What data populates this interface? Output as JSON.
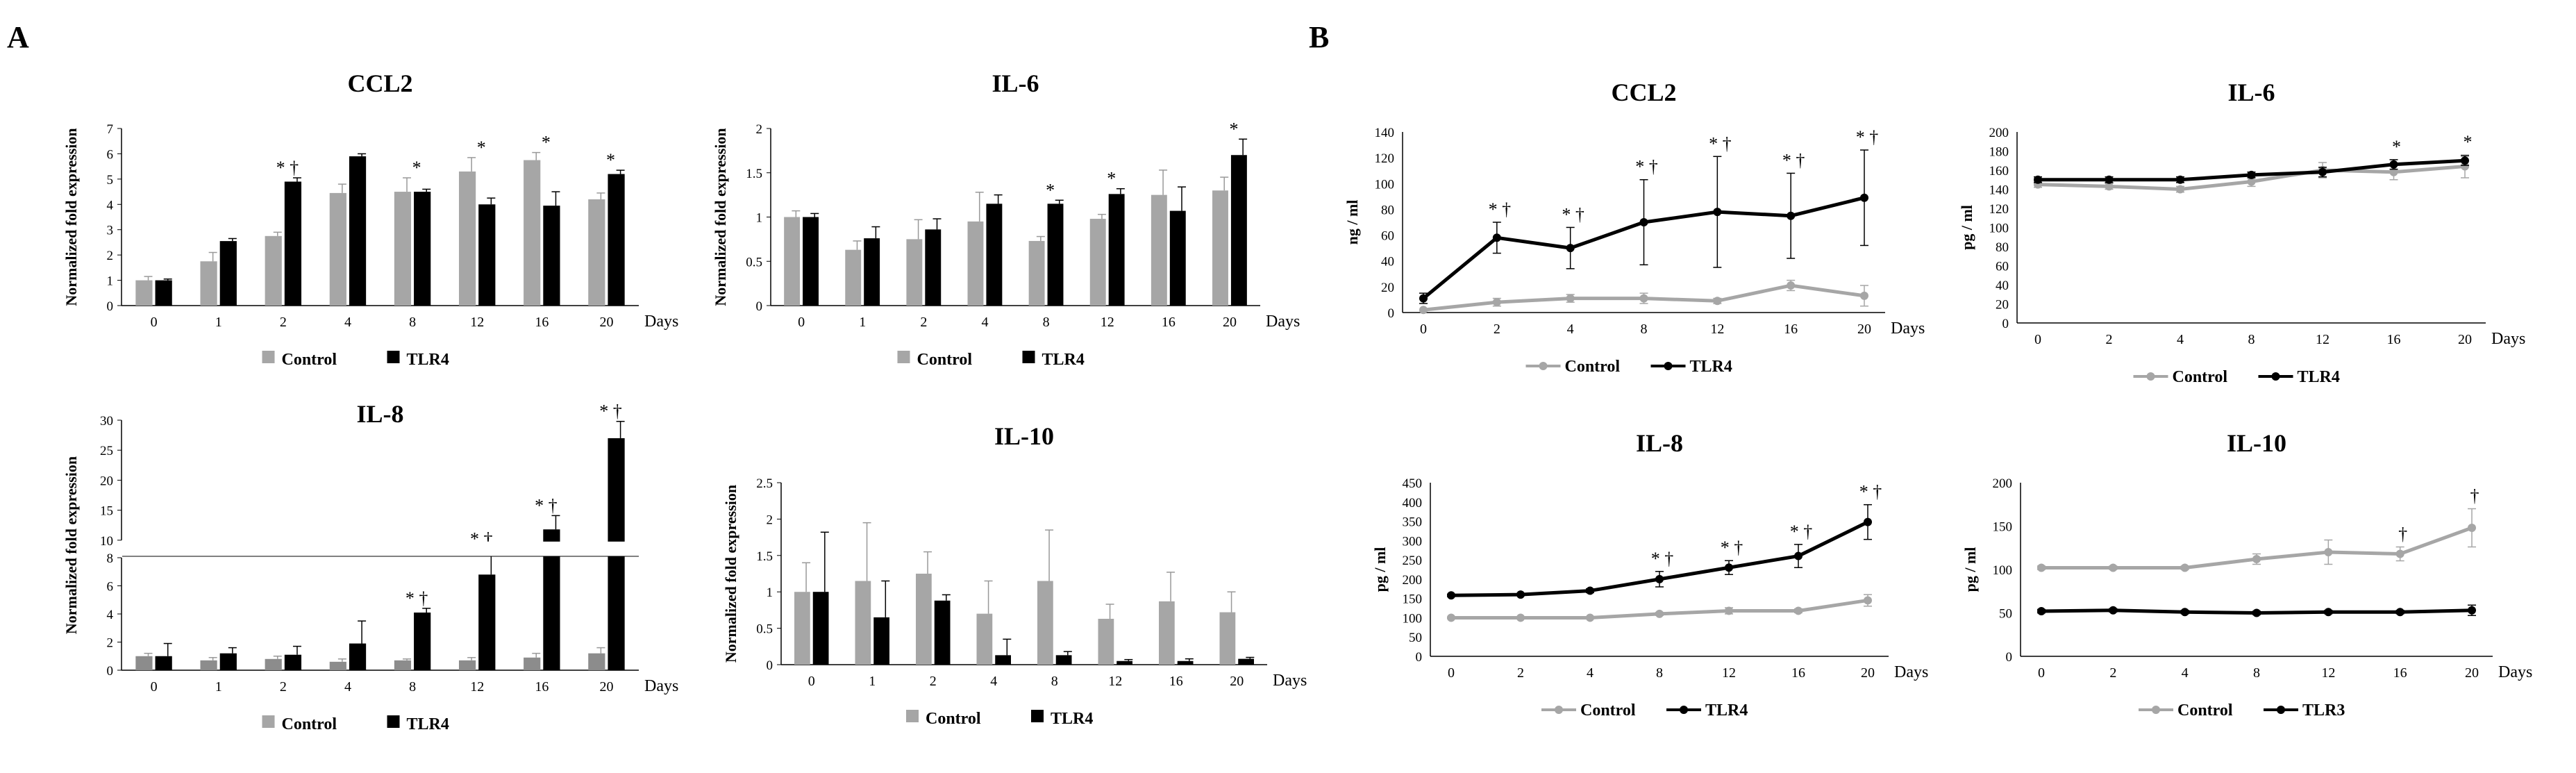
{
  "panels": {
    "a": "A",
    "b": "B"
  },
  "colors": {
    "control_bar": "#a6a6a6",
    "control_bar_dark": "#8c8c8c",
    "control_line": "#a6a6a6",
    "tlr": "#000000"
  },
  "chart_data": [
    {
      "id": "a-ccl2",
      "type": "bar",
      "title": "CCL2",
      "xlabel": "Days",
      "ylabel": "Normalized fold expression",
      "categories": [
        "0",
        "1",
        "2",
        "4",
        "8",
        "12",
        "16",
        "20"
      ],
      "yticks": [
        "0",
        "1",
        "2",
        "3",
        "4",
        "5",
        "6",
        "7"
      ],
      "ylim": [
        0,
        7
      ],
      "series": [
        {
          "name": "Control",
          "values": [
            1.0,
            1.75,
            2.75,
            4.45,
            4.5,
            5.3,
            5.75,
            4.2
          ],
          "err": [
            0.15,
            0.35,
            0.15,
            0.35,
            0.55,
            0.55,
            0.3,
            0.25
          ]
        },
        {
          "name": "TLR4",
          "values": [
            1.0,
            2.55,
            4.9,
            5.9,
            4.5,
            4.0,
            3.95,
            5.2
          ],
          "err": [
            0.05,
            0.1,
            0.15,
            0.1,
            0.1,
            0.25,
            0.55,
            0.15
          ]
        }
      ],
      "annotations": [
        {
          "category": "2",
          "text": "* †"
        },
        {
          "category": "8",
          "text": "*"
        },
        {
          "category": "12",
          "text": "*"
        },
        {
          "category": "16",
          "text": "*"
        },
        {
          "category": "20",
          "text": "*"
        }
      ]
    },
    {
      "id": "a-il6",
      "type": "bar",
      "title": "IL-6",
      "xlabel": "Days",
      "ylabel": "Normalized fold expression",
      "categories": [
        "0",
        "1",
        "2",
        "4",
        "8",
        "12",
        "16",
        "20"
      ],
      "yticks": [
        "0",
        "0.5",
        "1",
        "1.5",
        "2"
      ],
      "ylim": [
        0,
        2
      ],
      "series": [
        {
          "name": "Control",
          "values": [
            1.0,
            0.63,
            0.75,
            0.95,
            0.73,
            0.98,
            1.25,
            1.3
          ],
          "err": [
            0.07,
            0.1,
            0.22,
            0.33,
            0.05,
            0.05,
            0.28,
            0.15
          ]
        },
        {
          "name": "TLR4",
          "values": [
            1.0,
            0.76,
            0.86,
            1.15,
            1.15,
            1.26,
            1.07,
            1.7
          ],
          "err": [
            0.04,
            0.13,
            0.12,
            0.1,
            0.04,
            0.06,
            0.27,
            0.18
          ]
        }
      ],
      "annotations": [
        {
          "category": "8",
          "text": "*"
        },
        {
          "category": "12",
          "text": "*"
        },
        {
          "category": "20",
          "text": "*"
        }
      ]
    },
    {
      "id": "a-il8",
      "type": "bar",
      "title": "IL-8",
      "xlabel": "Days",
      "ylabel": "Normalized fold expression",
      "categories": [
        "0",
        "1",
        "2",
        "4",
        "8",
        "12",
        "16",
        "20"
      ],
      "yticks_lower": [
        "0",
        "2",
        "4",
        "6",
        "8"
      ],
      "yticks_upper": [
        "10",
        "15",
        "20",
        "25",
        "30"
      ],
      "broken_axis": {
        "lower": [
          0,
          8
        ],
        "upper": [
          10,
          30
        ]
      },
      "series": [
        {
          "name": "Control",
          "values": [
            1.0,
            0.7,
            0.8,
            0.6,
            0.7,
            0.7,
            0.9,
            1.2
          ],
          "err": [
            0.2,
            0.2,
            0.2,
            0.2,
            0.1,
            0.2,
            0.3,
            0.4
          ]
        },
        {
          "name": "TLR4",
          "values": [
            1.0,
            1.2,
            1.1,
            1.9,
            4.1,
            6.8,
            11.8,
            27.0
          ],
          "err": [
            0.9,
            0.4,
            0.6,
            1.6,
            0.3,
            1.5,
            2.3,
            2.8
          ]
        }
      ],
      "annotations": [
        {
          "category": "8",
          "text": "* †"
        },
        {
          "category": "12",
          "text": "* †"
        },
        {
          "category": "16",
          "text": "* †"
        },
        {
          "category": "20",
          "text": "* †"
        }
      ]
    },
    {
      "id": "a-il10",
      "type": "bar",
      "title": "IL-10",
      "xlabel": "Days",
      "ylabel": "Normalized fold expression",
      "categories": [
        "0",
        "1",
        "2",
        "4",
        "8",
        "12",
        "16",
        "20"
      ],
      "yticks": [
        "0",
        "0.5",
        "1",
        "1.5",
        "2",
        "2.5"
      ],
      "ylim": [
        0,
        2.5
      ],
      "series": [
        {
          "name": "Control",
          "values": [
            1.0,
            1.15,
            1.25,
            0.7,
            1.15,
            0.63,
            0.87,
            0.72
          ],
          "err": [
            0.4,
            0.8,
            0.3,
            0.45,
            0.7,
            0.2,
            0.4,
            0.28
          ]
        },
        {
          "name": "TLR4",
          "values": [
            1.0,
            0.65,
            0.88,
            0.13,
            0.13,
            0.05,
            0.05,
            0.08
          ],
          "err": [
            0.82,
            0.5,
            0.08,
            0.22,
            0.05,
            0.02,
            0.03,
            0.02
          ]
        }
      ],
      "annotations": []
    },
    {
      "id": "b-ccl2",
      "type": "line",
      "title": "CCL2",
      "xlabel": "Days",
      "ylabel": "ng / ml",
      "categories": [
        "0",
        "2",
        "4",
        "8",
        "12",
        "16",
        "20"
      ],
      "yticks": [
        "0",
        "20",
        "40",
        "60",
        "80",
        "100",
        "120",
        "140"
      ],
      "ylim": [
        0,
        140
      ],
      "series": [
        {
          "name": "Control",
          "values": [
            2,
            8,
            11,
            11,
            9,
            21,
            13
          ],
          "err": [
            0,
            3,
            3,
            4,
            2,
            4,
            8
          ]
        },
        {
          "name": "TLR4",
          "values": [
            11,
            58,
            50,
            70,
            78,
            75,
            89
          ],
          "err": [
            4,
            12,
            16,
            33,
            43,
            33,
            37
          ]
        }
      ],
      "annotations": [
        {
          "category": "2",
          "text": "* †"
        },
        {
          "category": "4",
          "text": "* †"
        },
        {
          "category": "8",
          "text": "* †"
        },
        {
          "category": "12",
          "text": "* †"
        },
        {
          "category": "16",
          "text": "* †"
        },
        {
          "category": "20",
          "text": "* †"
        }
      ]
    },
    {
      "id": "b-il6",
      "type": "line",
      "title": "IL-6",
      "xlabel": "Days",
      "ylabel": "pg / ml",
      "categories": [
        "0",
        "2",
        "4",
        "8",
        "12",
        "16",
        "20"
      ],
      "yticks": [
        "0",
        "20",
        "40",
        "60",
        "80",
        "100",
        "120",
        "140",
        "160",
        "180",
        "200"
      ],
      "ylim": [
        0,
        200
      ],
      "series": [
        {
          "name": "Control",
          "values": [
            145,
            143,
            140,
            148,
            160,
            158,
            164
          ],
          "err": [
            3,
            3,
            3,
            5,
            8,
            8,
            12
          ]
        },
        {
          "name": "TLR4",
          "values": [
            150,
            150,
            150,
            155,
            158,
            166,
            170
          ],
          "err": [
            3,
            3,
            3,
            3,
            5,
            5,
            5
          ]
        }
      ],
      "annotations": [
        {
          "category": "16",
          "text": "*"
        },
        {
          "category": "20",
          "text": "*"
        }
      ]
    },
    {
      "id": "b-il8",
      "type": "line",
      "title": "IL-8",
      "xlabel": "Days",
      "ylabel": "pg / ml",
      "categories": [
        "0",
        "2",
        "4",
        "8",
        "12",
        "16",
        "20"
      ],
      "yticks": [
        "0",
        "50",
        "100",
        "150",
        "200",
        "250",
        "300",
        "350",
        "400",
        "450"
      ],
      "ylim": [
        0,
        450
      ],
      "series": [
        {
          "name": "Control",
          "values": [
            100,
            100,
            100,
            110,
            118,
            118,
            145
          ],
          "err": [
            2,
            2,
            2,
            4,
            8,
            5,
            15
          ]
        },
        {
          "name": "TLR4",
          "values": [
            158,
            160,
            170,
            200,
            230,
            260,
            348
          ],
          "err": [
            3,
            3,
            5,
            20,
            18,
            30,
            45
          ]
        }
      ],
      "annotations": [
        {
          "category": "8",
          "text": "* †"
        },
        {
          "category": "12",
          "text": "* †"
        },
        {
          "category": "16",
          "text": "* †"
        },
        {
          "category": "20",
          "text": "* †"
        }
      ]
    },
    {
      "id": "b-il10",
      "type": "line",
      "title": "IL-10",
      "xlabel": "Days",
      "ylabel": "pg / ml",
      "categories": [
        "0",
        "2",
        "4",
        "8",
        "12",
        "16",
        "20"
      ],
      "yticks": [
        "0",
        "50",
        "100",
        "150",
        "200"
      ],
      "ylim": [
        0,
        200
      ],
      "series": [
        {
          "name": "Control",
          "values": [
            102,
            102,
            102,
            112,
            120,
            118,
            148
          ],
          "err": [
            2,
            2,
            2,
            6,
            14,
            8,
            22
          ]
        },
        {
          "name": "TLR3",
          "values": [
            52,
            53,
            51,
            50,
            51,
            51,
            53
          ],
          "err": [
            2,
            2,
            2,
            2,
            2,
            2,
            6
          ]
        }
      ],
      "annotations": [
        {
          "category": "16",
          "text": "†"
        },
        {
          "category": "20",
          "text": "†"
        }
      ]
    }
  ]
}
